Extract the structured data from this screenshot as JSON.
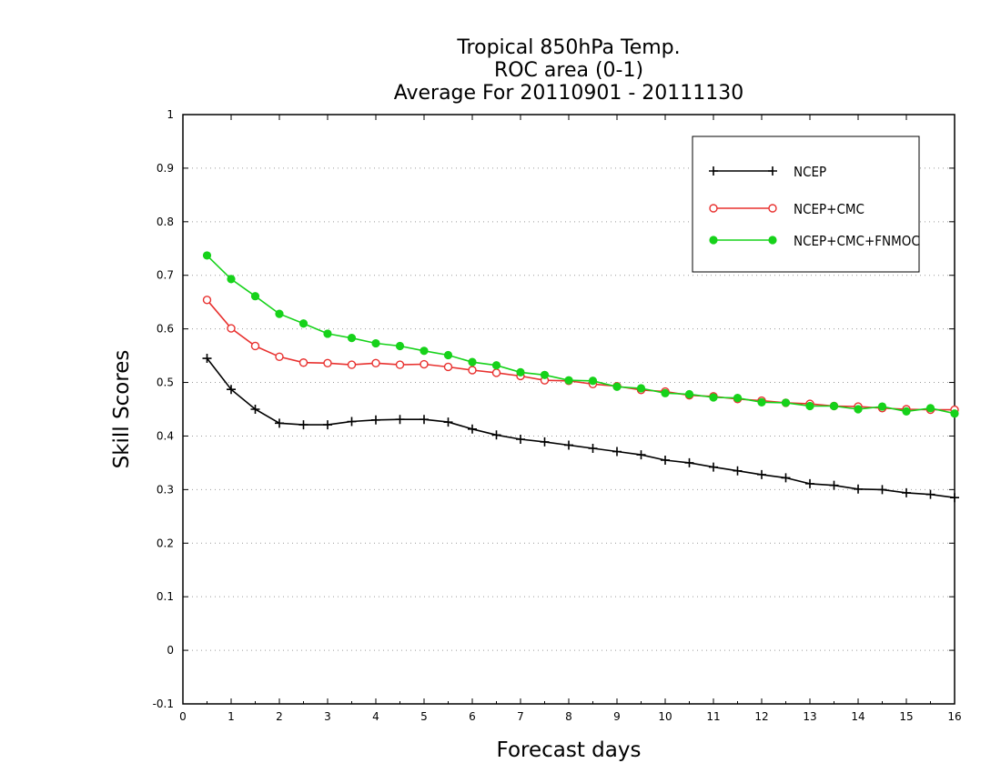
{
  "chart_data": {
    "type": "line",
    "title_lines": [
      "Tropical 850hPa Temp.",
      "ROC area (0-1)",
      "Average For 20110901 - 20111130"
    ],
    "xlabel": "Forecast days",
    "ylabel": "Skill Scores",
    "xlim": [
      0,
      16
    ],
    "ylim": [
      -0.1,
      1
    ],
    "x_ticks": [
      "0",
      "1",
      "2",
      "3",
      "4",
      "5",
      "6",
      "7",
      "8",
      "9",
      "10",
      "11",
      "12",
      "13",
      "14",
      "15",
      "16"
    ],
    "y_ticks": [
      "-0.1",
      "0",
      "0.1",
      "0.2",
      "0.3",
      "0.4",
      "0.5",
      "0.6",
      "0.7",
      "0.8",
      "0.9",
      "1"
    ],
    "grid": "horizontal dotted",
    "legend_position": "top-right",
    "x": [
      0.5,
      1,
      1.5,
      2,
      2.5,
      3,
      3.5,
      4,
      4.5,
      5,
      5.5,
      6,
      6.5,
      7,
      7.5,
      8,
      8.5,
      9,
      9.5,
      10,
      10.5,
      11,
      11.5,
      12,
      12.5,
      13,
      13.5,
      14,
      14.5,
      15,
      15.5,
      16
    ],
    "series": [
      {
        "name": "NCEP",
        "color": "#000000",
        "marker": "plus",
        "values": [
          0.545,
          0.487,
          0.45,
          0.424,
          0.421,
          0.421,
          0.427,
          0.43,
          0.431,
          0.431,
          0.426,
          0.413,
          0.402,
          0.394,
          0.389,
          0.383,
          0.377,
          0.371,
          0.365,
          0.355,
          0.35,
          0.342,
          0.335,
          0.328,
          0.322,
          0.311,
          0.308,
          0.301,
          0.3,
          0.294,
          0.291,
          0.285
        ]
      },
      {
        "name": "NCEP+CMC",
        "color": "#e8312f",
        "marker": "open-circle",
        "values": [
          0.654,
          0.601,
          0.568,
          0.548,
          0.537,
          0.536,
          0.533,
          0.536,
          0.533,
          0.534,
          0.529,
          0.523,
          0.518,
          0.512,
          0.504,
          0.503,
          0.497,
          0.493,
          0.486,
          0.483,
          0.476,
          0.474,
          0.469,
          0.466,
          0.462,
          0.46,
          0.456,
          0.455,
          0.452,
          0.45,
          0.449,
          0.449
        ]
      },
      {
        "name": "NCEP+CMC+FNMOC",
        "color": "#16d21a",
        "marker": "filled-circle",
        "values": [
          0.737,
          0.693,
          0.661,
          0.628,
          0.61,
          0.591,
          0.583,
          0.573,
          0.568,
          0.559,
          0.551,
          0.538,
          0.532,
          0.519,
          0.514,
          0.504,
          0.503,
          0.492,
          0.489,
          0.48,
          0.478,
          0.472,
          0.471,
          0.463,
          0.462,
          0.456,
          0.456,
          0.45,
          0.455,
          0.446,
          0.452,
          0.442
        ]
      }
    ]
  }
}
